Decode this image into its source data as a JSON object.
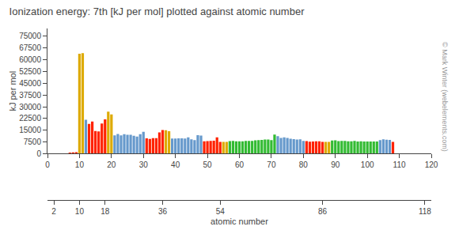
{
  "chart_data": {
    "type": "bar",
    "title": "Ionization energy: 7th [kJ per mol] plotted against atomic number",
    "ylabel": "kJ per mol",
    "xlabel": "atomic number",
    "x": [
      7,
      8,
      9,
      10,
      11,
      12,
      13,
      14,
      15,
      16,
      17,
      18,
      19,
      20,
      21,
      22,
      23,
      24,
      25,
      26,
      27,
      28,
      29,
      30,
      31,
      32,
      33,
      34,
      35,
      36,
      37,
      38,
      39,
      40,
      41,
      42,
      43,
      44,
      45,
      46,
      47,
      48,
      49,
      50,
      51,
      52,
      53,
      54,
      55,
      56,
      57,
      58,
      59,
      60,
      61,
      62,
      63,
      64,
      65,
      66,
      67,
      68,
      69,
      70,
      71,
      72,
      73,
      74,
      75,
      76,
      77,
      78,
      79,
      80,
      81,
      82,
      83,
      84,
      85,
      86,
      87,
      88,
      89,
      90,
      91,
      92,
      93,
      94,
      95,
      96,
      97,
      98,
      99,
      100,
      101,
      102,
      103,
      104,
      105,
      106,
      107,
      108
    ],
    "values": [
      667.0,
      871.0,
      1000.0,
      63890.0,
      64200.0,
      21710.0,
      18980.0,
      20520.0,
      14520.0,
      14280.0,
      19210.0,
      21900.0,
      26810.0,
      25080.0,
      11640.0,
      12630.0,
      11670.0,
      12400.0,
      12070.0,
      12100.0,
      11500.0,
      11000.0,
      12400.0,
      14000.0,
      9800.0,
      9390.0,
      9870.0,
      9890.0,
      13600.0,
      15120.0,
      14990.0,
      14400.0,
      9680.0,
      9730.0,
      9810.0,
      9760.0,
      9680.0,
      10380.0,
      9230.0,
      8690.0,
      11850.0,
      11550.0,
      7900.0,
      8000.0,
      8200.0,
      8300.0,
      10440.0,
      7570.0,
      7480.0,
      7590.0,
      8000.0,
      8160.0,
      7900.0,
      7900.0,
      7900.0,
      8200.0,
      8100.0,
      8200.0,
      8600.0,
      8700.0,
      8800.0,
      9000.0,
      9000.0,
      8700.0,
      12200.0,
      11200.0,
      10000.0,
      10400.0,
      10050.0,
      9600.0,
      9300.0,
      9100.0,
      9200.0,
      8100.0,
      8000.0,
      7600.0,
      7800.0,
      7900.0,
      7900.0,
      7590.0,
      7480.0,
      7480.0,
      8400.0,
      8500.0,
      8000.0,
      8100.0,
      8100.0,
      7900.0,
      7900.0,
      8100.0,
      7800.0,
      7900.0,
      7800.0,
      7800.0,
      7800.0,
      7800.0,
      7800.0,
      8700.0,
      9200.0,
      8900.0,
      8800.0,
      7500.0
    ],
    "colors": [
      "#ff2200",
      "#ff2200",
      "#ff2200",
      "#ddaa00",
      "#ddaa00",
      "#6699cc",
      "#ff2200",
      "#ff2200",
      "#ff2200",
      "#ff2200",
      "#ff2200",
      "#ff2200",
      "#ddaa00",
      "#ddaa00",
      "#6699cc",
      "#6699cc",
      "#6699cc",
      "#6699cc",
      "#6699cc",
      "#6699cc",
      "#6699cc",
      "#6699cc",
      "#6699cc",
      "#6699cc",
      "#ff2200",
      "#ff2200",
      "#ff2200",
      "#ff2200",
      "#ff2200",
      "#ff2200",
      "#ddaa00",
      "#ddaa00",
      "#6699cc",
      "#6699cc",
      "#6699cc",
      "#6699cc",
      "#6699cc",
      "#6699cc",
      "#6699cc",
      "#6699cc",
      "#6699cc",
      "#6699cc",
      "#ff2200",
      "#ff2200",
      "#ff2200",
      "#ff2200",
      "#ff2200",
      "#ff2200",
      "#ddaa00",
      "#ddaa00",
      "#33bb33",
      "#33bb33",
      "#33bb33",
      "#33bb33",
      "#33bb33",
      "#33bb33",
      "#33bb33",
      "#33bb33",
      "#33bb33",
      "#33bb33",
      "#33bb33",
      "#33bb33",
      "#33bb33",
      "#33bb33",
      "#33bb33",
      "#6699cc",
      "#6699cc",
      "#6699cc",
      "#6699cc",
      "#6699cc",
      "#6699cc",
      "#6699cc",
      "#6699cc",
      "#6699cc",
      "#ff2200",
      "#ff2200",
      "#ff2200",
      "#ff2200",
      "#ff2200",
      "#ff2200",
      "#ddaa00",
      "#ddaa00",
      "#33bb33",
      "#33bb33",
      "#33bb33",
      "#33bb33",
      "#33bb33",
      "#33bb33",
      "#33bb33",
      "#33bb33",
      "#33bb33",
      "#33bb33",
      "#33bb33",
      "#33bb33",
      "#33bb33",
      "#33bb33",
      "#33bb33",
      "#6699cc",
      "#6699cc",
      "#6699cc",
      "#6699cc",
      "#ff2200"
    ],
    "xlim": [
      0,
      120
    ],
    "xticks": [
      0,
      10,
      20,
      30,
      40,
      50,
      60,
      70,
      80,
      90,
      100,
      110,
      120
    ],
    "x2ticks": [
      2,
      10,
      18,
      36,
      54,
      86,
      118
    ],
    "ylim": [
      0,
      80000
    ],
    "yticks": [
      0,
      7500,
      15000,
      22500,
      30000,
      37500,
      45000,
      52500,
      60000,
      67500,
      75000
    ],
    "annotations": [
      {
        "text": "© Mark Winter (webelements.com)"
      }
    ],
    "grid": false
  }
}
